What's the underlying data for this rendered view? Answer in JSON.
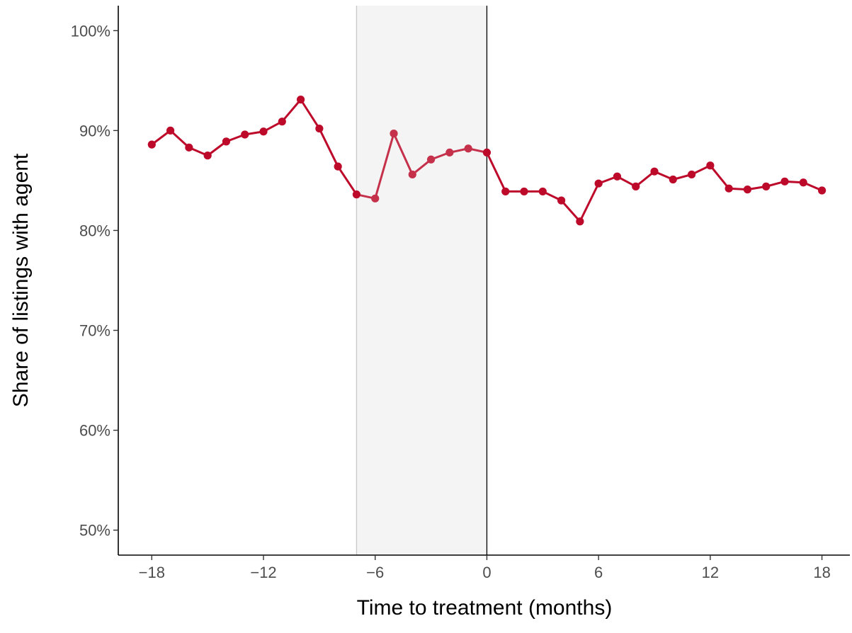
{
  "chart_data": {
    "type": "line",
    "title": "",
    "xlabel": "Time to treatment (months)",
    "ylabel": "Share of listings with agent",
    "xlim": [
      -19.8,
      19.5
    ],
    "ylim": [
      47.5,
      102.5
    ],
    "x_ticks": [
      -18,
      -12,
      -6,
      0,
      6,
      12,
      18
    ],
    "x_tick_labels": [
      "−18",
      "−12",
      "−6",
      "0",
      "6",
      "12",
      "18"
    ],
    "y_ticks": [
      50,
      60,
      70,
      80,
      90,
      100
    ],
    "y_tick_labels": [
      "50%",
      "60%",
      "70%",
      "80%",
      "90%",
      "100%"
    ],
    "grid": false,
    "legend": "none",
    "shaded_region": {
      "x_start": -7,
      "x_end": 0,
      "color": "#f4f4f4"
    },
    "reference_lines": [
      {
        "x": -7,
        "color": "#c8c8c8"
      },
      {
        "x": 0,
        "color": "#000000"
      }
    ],
    "series_color": "#bd0a2a",
    "shaded_series_color": "#c5304b",
    "series": [
      {
        "x": [
          -18,
          -17,
          -16,
          -15,
          -14,
          -13,
          -12,
          -11,
          -10,
          -9,
          -8,
          -7,
          -6,
          -5,
          -4,
          -3,
          -2,
          -1,
          0,
          1,
          2,
          3,
          4,
          5,
          6,
          7,
          8,
          9,
          10,
          11,
          12,
          13,
          14,
          15,
          16,
          17,
          18
        ],
        "values": [
          88.6,
          90.0,
          88.3,
          87.5,
          88.9,
          89.6,
          89.9,
          90.9,
          93.1,
          90.2,
          86.4,
          83.6,
          83.2,
          89.7,
          85.6,
          87.1,
          87.8,
          88.2,
          87.8,
          83.9,
          83.9,
          83.9,
          83.0,
          80.9,
          84.7,
          85.4,
          84.4,
          85.9,
          85.1,
          85.6,
          86.5,
          84.2,
          84.1,
          84.4,
          84.9,
          84.8,
          84.0
        ]
      }
    ]
  }
}
